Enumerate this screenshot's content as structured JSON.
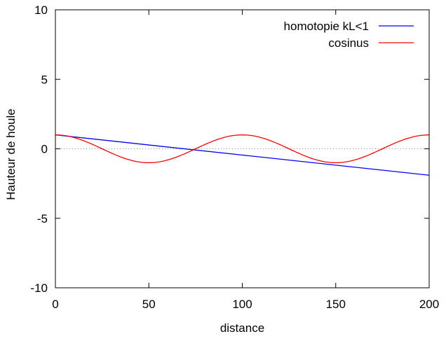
{
  "chart_data": {
    "type": "line",
    "title": "",
    "xlabel": "distance",
    "ylabel": "Hauteur de houle",
    "xlim": [
      0,
      200
    ],
    "ylim": [
      -10,
      10
    ],
    "x_ticks": [
      0,
      50,
      100,
      150,
      200
    ],
    "x_tick_labels": [
      "0",
      "50",
      "100",
      "150",
      "200"
    ],
    "y_ticks": [
      -10,
      -5,
      0,
      5,
      10
    ],
    "y_tick_labels": [
      "-10",
      "-5",
      "0",
      "5",
      "10"
    ],
    "grid": false,
    "zero_line": true,
    "zero_line_color": "#9a9a9a",
    "legend_position": "top-right",
    "series": [
      {
        "name": "homotopie kL<1",
        "color": "#0000ff",
        "x": [
          0,
          200
        ],
        "y": [
          1.0,
          -1.9
        ]
      },
      {
        "name": "cosinus",
        "color": "#ff0000",
        "x": [
          0,
          10,
          20,
          25,
          30,
          40,
          50,
          60,
          70,
          75,
          80,
          90,
          100,
          110,
          120,
          125,
          130,
          140,
          150,
          160,
          170,
          175,
          180,
          190,
          200
        ],
        "y": [
          1.0,
          0.81,
          0.31,
          0.0,
          -0.31,
          -0.81,
          -1.0,
          -0.81,
          -0.31,
          0.0,
          0.31,
          0.81,
          1.0,
          0.81,
          0.31,
          0.0,
          -0.31,
          -0.81,
          -1.0,
          -0.81,
          -0.31,
          0.0,
          0.31,
          0.81,
          1.0
        ]
      }
    ]
  }
}
